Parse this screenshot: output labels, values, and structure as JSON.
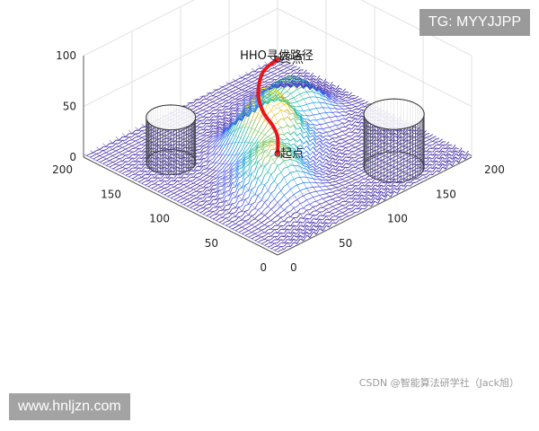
{
  "chart_data": {
    "type": "surface3d",
    "title": "HHO寻优路径",
    "x_ticks": [
      0,
      50,
      100,
      150,
      200
    ],
    "y_ticks": [
      0,
      50,
      100,
      150,
      200
    ],
    "z_ticks": [
      0,
      50,
      100
    ],
    "xlim": [
      0,
      200
    ],
    "ylim": [
      0,
      200
    ],
    "zlim": [
      0,
      100
    ],
    "grid": true,
    "surface": {
      "peaks": [
        {
          "x": 60,
          "y": 65,
          "height": 42
        },
        {
          "x": 95,
          "y": 105,
          "height": 64
        },
        {
          "x": 145,
          "y": 130,
          "height": 38
        }
      ],
      "colormap": "parula"
    },
    "obstacles": [
      {
        "type": "cylinder",
        "center_x": 150,
        "center_y": 30,
        "radius": 22,
        "height": 52
      },
      {
        "type": "cylinder",
        "center_x": 40,
        "center_y": 150,
        "radius": 18,
        "height": 44
      }
    ],
    "path": {
      "color": "#e8161b",
      "points": [
        {
          "x": 0,
          "y": 0,
          "z": 100
        },
        {
          "x": 25,
          "y": 25,
          "z": 92
        },
        {
          "x": 55,
          "y": 60,
          "z": 72
        },
        {
          "x": 85,
          "y": 100,
          "z": 52
        },
        {
          "x": 120,
          "y": 140,
          "z": 34
        },
        {
          "x": 165,
          "y": 180,
          "z": 14
        },
        {
          "x": 200,
          "y": 200,
          "z": 0
        }
      ]
    },
    "annotations": [
      {
        "label": "起点",
        "x": 0,
        "y": 0,
        "z": 100
      },
      {
        "label": "终点",
        "x": 200,
        "y": 200,
        "z": 0
      }
    ]
  },
  "watermarks": {
    "tg": "TG: MYYJJPP",
    "site": "www.hnljzn.com",
    "credit": "CSDN @智能算法研学社（Jack旭）"
  }
}
